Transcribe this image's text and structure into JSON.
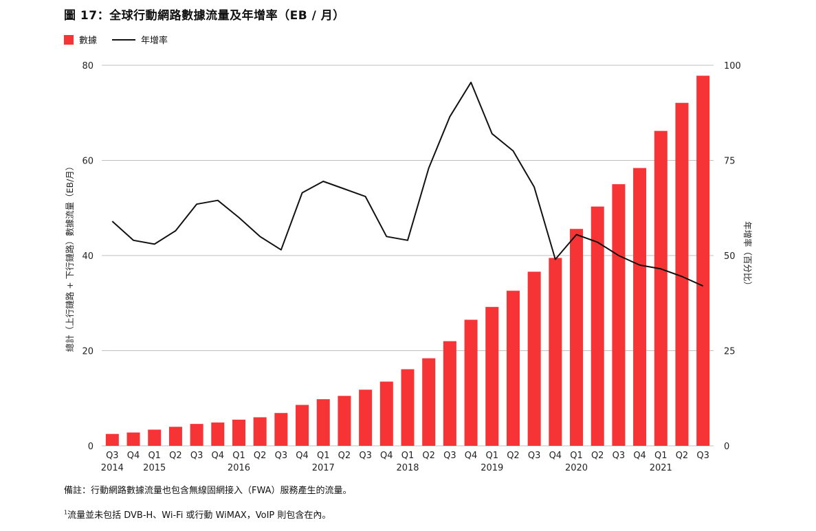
{
  "title": "圖 17：全球行動網路數據流量及年增率（EB / 月）",
  "legend": {
    "bar_label": "數據",
    "line_label": "年增率"
  },
  "notes": {
    "note1": "備註：行動網路數據流量也包含無線固網接入（FWA）服務產生的流量。",
    "note2_sup": "1",
    "note2": "流量並未包括 DVB-H、Wi-Fi 或行動 WiMAX，VoIP 則包含在內。"
  },
  "colors": {
    "bar": "#f63335",
    "line": "#111111",
    "grid": "#bfbfbf"
  },
  "chart_data": {
    "type": "bar",
    "categories": [
      "Q3",
      "Q4",
      "Q1",
      "Q2",
      "Q3",
      "Q4",
      "Q1",
      "Q2",
      "Q3",
      "Q4",
      "Q1",
      "Q2",
      "Q3",
      "Q4",
      "Q1",
      "Q2",
      "Q3",
      "Q4",
      "Q1",
      "Q2",
      "Q3",
      "Q4",
      "Q1",
      "Q2",
      "Q3",
      "Q4",
      "Q1",
      "Q2",
      "Q3"
    ],
    "year_labels": [
      {
        "index": 0,
        "label": "2014"
      },
      {
        "index": 2,
        "label": "2015"
      },
      {
        "index": 6,
        "label": "2016"
      },
      {
        "index": 10,
        "label": "2017"
      },
      {
        "index": 14,
        "label": "2018"
      },
      {
        "index": 18,
        "label": "2019"
      },
      {
        "index": 22,
        "label": "2020"
      },
      {
        "index": 26,
        "label": "2021"
      }
    ],
    "series": [
      {
        "name": "數據",
        "type": "bar",
        "axis": "left",
        "values": [
          2.5,
          2.8,
          3.4,
          4.0,
          4.6,
          4.9,
          5.5,
          6.0,
          6.9,
          8.6,
          9.8,
          10.5,
          11.8,
          13.5,
          16.1,
          18.4,
          22.0,
          26.5,
          29.2,
          32.6,
          36.6,
          39.5,
          45.6,
          50.3,
          55.0,
          58.4,
          66.2,
          72.1,
          77.8
        ]
      },
      {
        "name": "年增率",
        "type": "line",
        "axis": "right",
        "values": [
          59,
          54,
          53,
          56.5,
          63.5,
          64.5,
          60,
          55,
          51.5,
          66.5,
          69.5,
          67.5,
          65.5,
          55,
          54,
          73,
          86.5,
          95.5,
          82,
          77.5,
          68,
          49,
          55.5,
          53.5,
          50,
          47.5,
          46.5,
          44.5,
          42
        ]
      }
    ],
    "ylabel": "總計（上行鏈路 + 下行鏈路）數據流量（EB/月）",
    "y2label": "年增率（百分比）",
    "ylim": [
      0,
      80
    ],
    "y2lim": [
      0,
      100
    ],
    "yticks": [
      0,
      20,
      40,
      60,
      80
    ],
    "y2ticks": [
      0,
      25,
      50,
      75,
      100
    ],
    "grid": true,
    "legend_position": "top-left"
  }
}
